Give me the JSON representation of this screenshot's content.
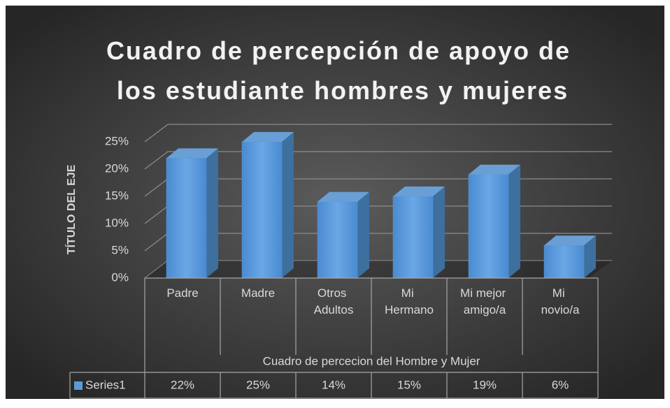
{
  "chart_data": {
    "type": "bar3d",
    "title": "Cuadro de percepción de apoyo de los estudiante hombres y mujeres",
    "y_label": "TÍTULO DEL EJE",
    "x_label": "Cuadro de percecion del Hombre y Mujer",
    "categories": [
      "Padre",
      "Madre",
      "Otros Adultos",
      "Mi Hermano",
      "Mi mejor amigo/a",
      "Mi novio/a"
    ],
    "series": [
      {
        "name": "Series1",
        "color": "#5b9bd5",
        "values": [
          22,
          25,
          14,
          15,
          19,
          6
        ],
        "value_labels": [
          "22%",
          "25%",
          "14%",
          "15%",
          "19%",
          "6%"
        ]
      }
    ],
    "ylim": [
      0,
      25
    ],
    "yticks": [
      {
        "value": 0,
        "label": "0%"
      },
      {
        "value": 5,
        "label": "5%"
      },
      {
        "value": 10,
        "label": "10%"
      },
      {
        "value": 15,
        "label": "15%"
      },
      {
        "value": 20,
        "label": "20%"
      },
      {
        "value": 25,
        "label": "25%"
      }
    ],
    "grid": true,
    "data_table": true
  }
}
